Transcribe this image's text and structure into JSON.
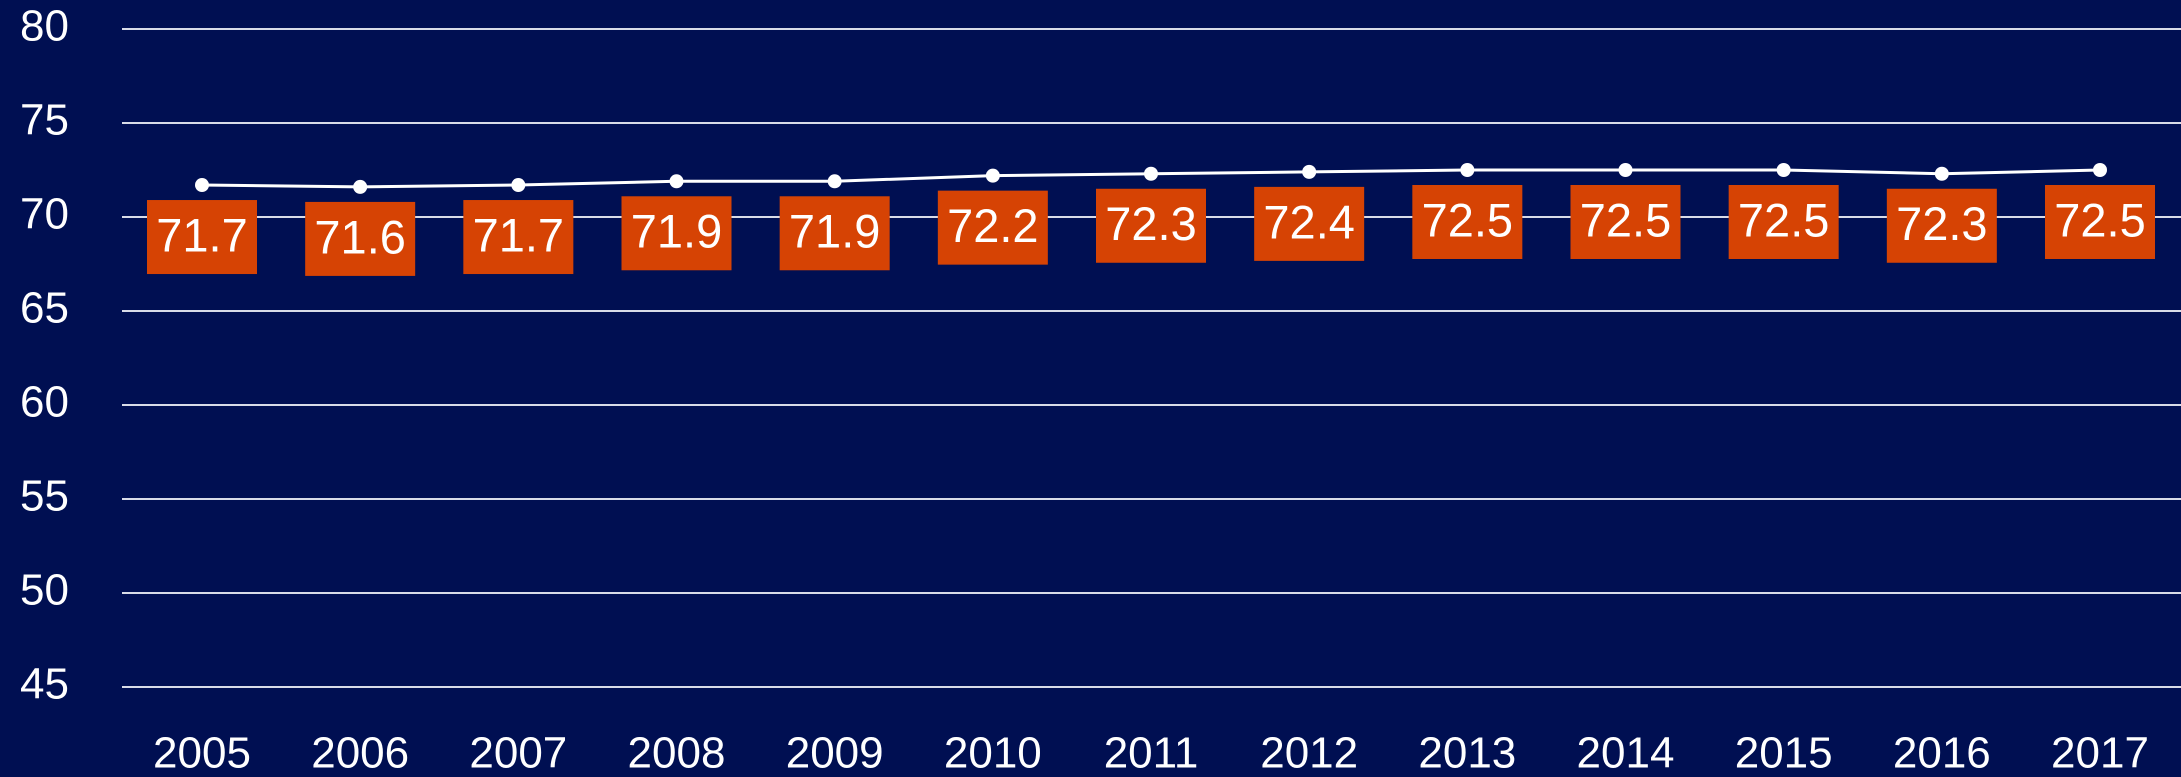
{
  "chart_data": {
    "type": "line",
    "categories": [
      "2005",
      "2006",
      "2007",
      "2008",
      "2009",
      "2010",
      "2011",
      "2012",
      "2013",
      "2014",
      "2015",
      "2016",
      "2017"
    ],
    "series": [
      {
        "color": "#ffffff",
        "values": [
          71.7,
          71.6,
          71.7,
          71.9,
          71.9,
          72.2,
          72.3,
          72.4,
          72.5,
          72.5,
          72.5,
          72.3,
          72.5
        ]
      }
    ],
    "label_color": "#d64304",
    "ylim": [
      45,
      80
    ],
    "yticks": [
      45,
      50,
      55,
      60,
      65,
      70,
      75,
      80
    ],
    "grid": true
  }
}
